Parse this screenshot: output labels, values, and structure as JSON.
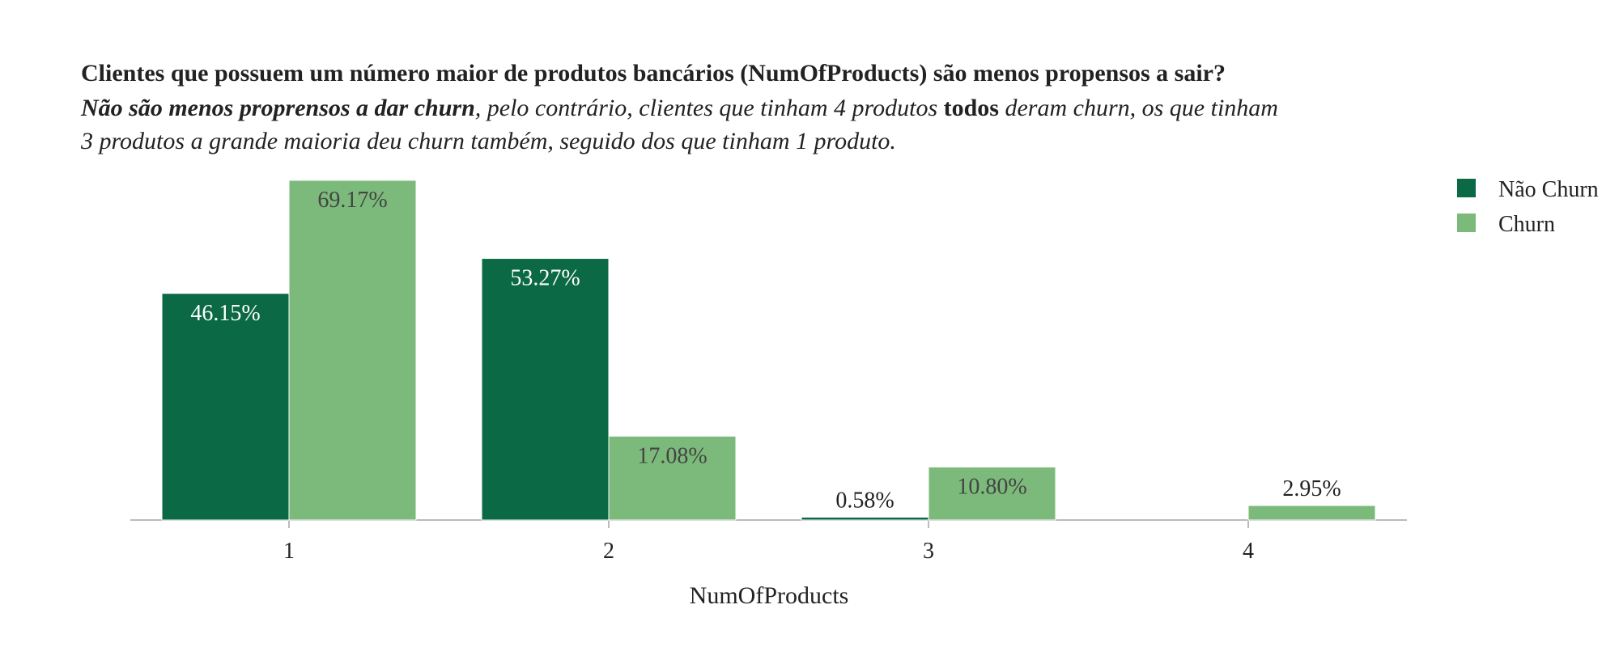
{
  "chart_data": {
    "type": "bar",
    "title": "Clientes que possuem um número maior de produtos bancários (NumOfProducts) são menos propensos a sair?",
    "subtitle_lines": [
      [
        {
          "text": "Não são menos proprensos a dar churn",
          "bold": true,
          "italic": true
        },
        {
          "text": ", pelo contrário, clientes que tinham 4 produtos ",
          "bold": false,
          "italic": true
        },
        {
          "text": "todos",
          "bold": true,
          "italic": false
        },
        {
          "text": " deram churn, os que tinham",
          "bold": false,
          "italic": true
        }
      ],
      [
        {
          "text": "3 produtos a grande maioria deu churn também, seguido dos que tinham 1 produto.",
          "bold": false,
          "italic": true
        }
      ]
    ],
    "x_label": "NumOfProducts",
    "categories": [
      "1",
      "2",
      "3",
      "4"
    ],
    "series": [
      {
        "name": "Não Churn",
        "color": "#0b6946",
        "values": [
          46.15,
          53.27,
          0.58,
          null
        ],
        "value_labels": [
          "46.15%",
          "53.27%",
          "0.58%",
          null
        ]
      },
      {
        "name": "Churn",
        "color": "#7bba7a",
        "values": [
          69.17,
          17.08,
          10.8,
          2.95
        ],
        "value_labels": [
          "69.17%",
          "17.08%",
          "10.80%",
          "2.95%"
        ]
      }
    ],
    "legend": "top-right"
  }
}
